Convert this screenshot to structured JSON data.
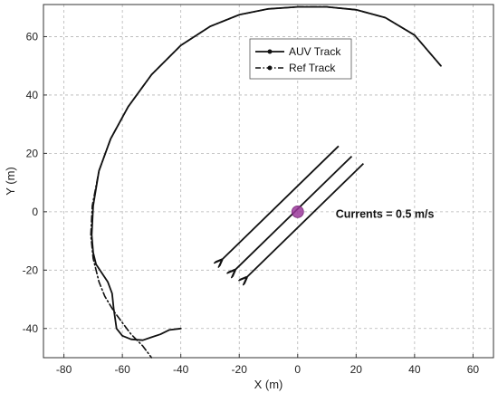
{
  "chart_data": {
    "type": "line",
    "xlabel": "X (m)",
    "ylabel": "Y (m)",
    "xlim": [
      -87,
      67
    ],
    "ylim": [
      -50,
      71
    ],
    "xticks": [
      -80,
      -60,
      -40,
      -20,
      0,
      20,
      40,
      60
    ],
    "yticks": [
      -40,
      -20,
      0,
      20,
      40,
      60
    ],
    "grid": true,
    "legend": {
      "placement": "top-center",
      "entries": [
        "AUV Track",
        "Ref Track"
      ]
    },
    "series": [
      {
        "name": "AUV Track",
        "style": "solid",
        "x": [
          49,
          40,
          30,
          20,
          10,
          0,
          -10,
          -20,
          -30,
          -40,
          -50,
          -58,
          -64,
          -68,
          -70,
          -70.5,
          -70,
          -69,
          -67,
          -65,
          -63.5,
          -63,
          -62.5,
          -62,
          -60,
          -57,
          -53,
          -50,
          -47,
          -44,
          -40
        ],
        "y": [
          50,
          60.5,
          66.5,
          69.2,
          70.2,
          70.2,
          69.5,
          67.5,
          63.5,
          57,
          47,
          36,
          25,
          14,
          2,
          -8,
          -14,
          -18,
          -21,
          -24,
          -28,
          -33,
          -36.5,
          -40,
          -42.5,
          -43.7,
          -44,
          -43,
          -42,
          -40.5,
          -40
        ]
      },
      {
        "name": "Ref Track",
        "style": "dash-dot",
        "x": [
          49,
          40,
          30,
          20,
          10,
          0,
          -10,
          -20,
          -30,
          -40,
          -50,
          -58,
          -64,
          -68,
          -70.3,
          -70.8,
          -70,
          -68,
          -66,
          -63,
          -60,
          -57,
          -53,
          -50
        ],
        "y": [
          50,
          60.5,
          66.5,
          69.2,
          70.2,
          70.2,
          69.5,
          67.5,
          63.5,
          57,
          47,
          36,
          25,
          14,
          2,
          -8,
          -16,
          -24,
          -29,
          -34,
          -38,
          -42,
          -46,
          -50
        ]
      }
    ],
    "arrows": [
      {
        "from": [
          14,
          22.5
        ],
        "to": [
          -26,
          -16.5
        ]
      },
      {
        "from": [
          18.5,
          19
        ],
        "to": [
          -21.5,
          -20
        ]
      },
      {
        "from": [
          22.5,
          16.5
        ],
        "to": [
          -17.5,
          -22.5
        ]
      }
    ],
    "marker": {
      "x": 0,
      "y": 0,
      "color": "#9b3a9b"
    },
    "annotation": {
      "text": "Currents = 0.5 m/s",
      "x": 13,
      "y": -2
    }
  }
}
